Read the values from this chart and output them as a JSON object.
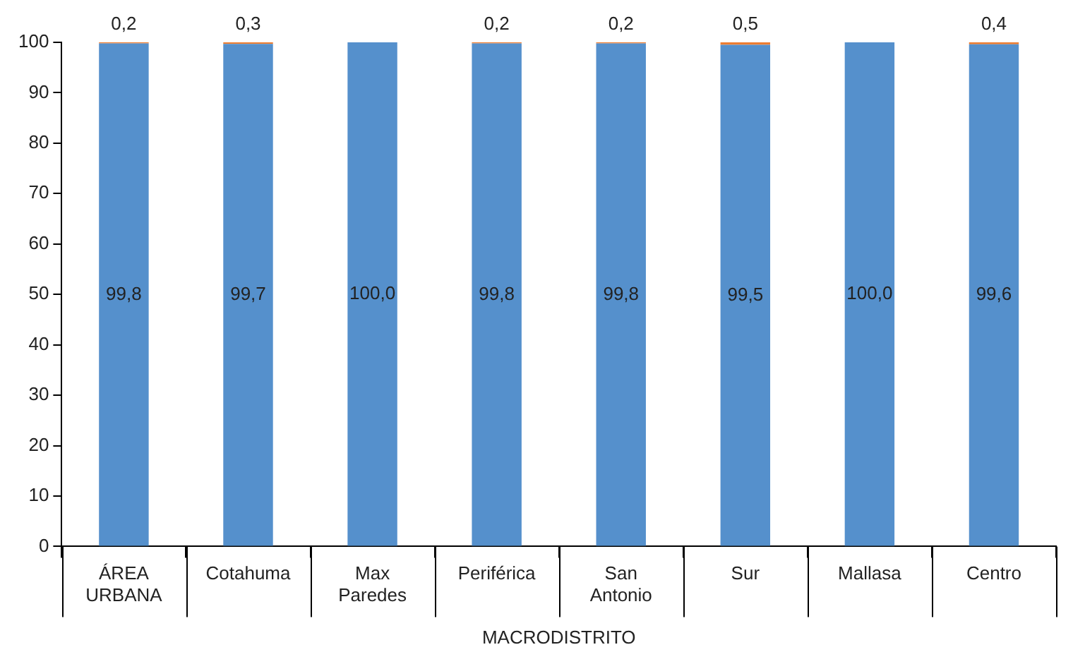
{
  "chart_data": {
    "type": "bar",
    "stacked": true,
    "xlabel": "MACRODISTRITO",
    "categories": [
      "ÁREA URBANA",
      "Cotahuma",
      "Max Paredes",
      "Periférica",
      "San Antonio",
      "Sur",
      "Mallasa",
      "Centro"
    ],
    "series": [
      {
        "color": "#5590cc",
        "values": [
          99.8,
          99.7,
          100.0,
          99.8,
          99.8,
          99.5,
          100.0,
          99.6
        ],
        "value_labels": [
          "99,8",
          "99,7",
          "100,0",
          "99,8",
          "99,8",
          "99,5",
          "100,0",
          "99,6"
        ]
      },
      {
        "color": "#ed7d31",
        "values": [
          0.2,
          0.3,
          null,
          0.2,
          0.2,
          0.5,
          null,
          0.4
        ],
        "value_labels": [
          "0,2",
          "0,3",
          null,
          "0,2",
          "0,2",
          "0,5",
          null,
          "0,4"
        ]
      }
    ],
    "ylim": [
      0,
      100
    ],
    "yticks": [
      0,
      10,
      20,
      30,
      40,
      50,
      60,
      70,
      80,
      90,
      100
    ],
    "grid": false,
    "legend": false
  }
}
